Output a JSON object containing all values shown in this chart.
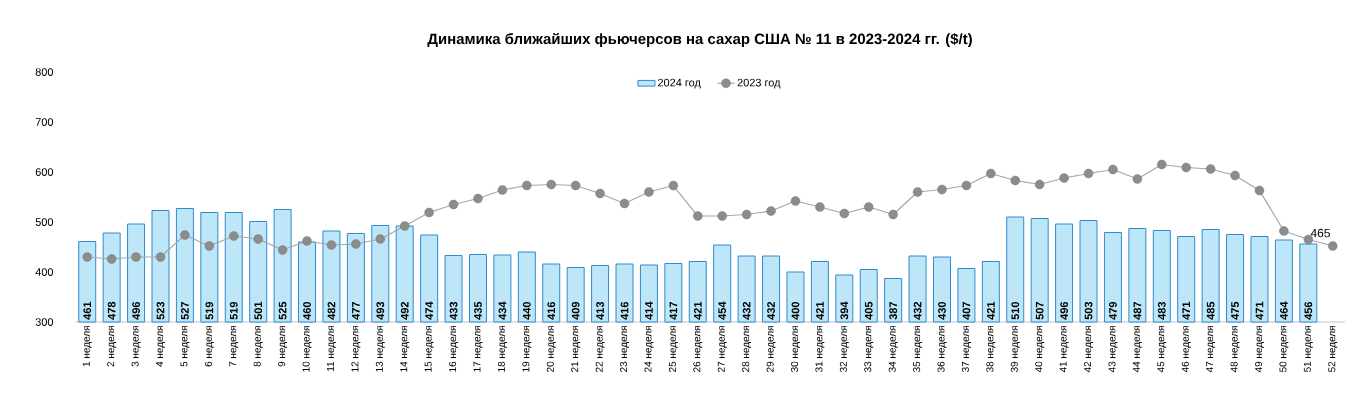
{
  "chart_data": {
    "type": "bar",
    "title": "Динамика ближайших фьючерсов на сахар США № 11 в 2023-2024 гг. ($/t)",
    "categories": [
      "1 неделя",
      "2 неделя",
      "3 неделя",
      "4 неделя",
      "5 неделя",
      "6 неделя",
      "7 неделя",
      "8 неделя",
      "9 неделя",
      "10 неделя",
      "11 неделя",
      "12 неделя",
      "13 неделя",
      "14 неделя",
      "15 неделя",
      "16 неделя",
      "17 неделя",
      "18 неделя",
      "19 неделя",
      "20 неделя",
      "21 неделя",
      "22 неделя",
      "23 неделя",
      "24 неделя",
      "25 неделя",
      "26 неделя",
      "27 неделя",
      "28 неделя",
      "29 неделя",
      "30 неделя",
      "31 неделя",
      "32 неделя",
      "33 неделя",
      "34 неделя",
      "35 неделя",
      "36 неделя",
      "37 неделя",
      "38 неделя",
      "39 неделя",
      "40 неделя",
      "41 неделя",
      "42 неделя",
      "43 неделя",
      "44 неделя",
      "45 неделя",
      "46 неделя",
      "47 неделя",
      "48 неделя",
      "49 неделя",
      "50 неделя",
      "51 неделя",
      "52 неделя"
    ],
    "series": [
      {
        "name": "2024 год",
        "type": "bar",
        "color": "#bde6f9",
        "data_labels": true,
        "values": [
          461,
          478,
          496,
          523,
          527,
          519,
          519,
          501,
          525,
          460,
          482,
          477,
          493,
          492,
          474,
          433,
          435,
          434,
          440,
          416,
          409,
          413,
          416,
          414,
          417,
          421,
          454,
          432,
          432,
          400,
          421,
          394,
          405,
          387,
          432,
          430,
          407,
          421,
          510,
          507,
          496,
          503,
          479,
          487,
          483,
          471,
          485,
          475,
          471,
          464,
          456,
          null
        ]
      },
      {
        "name": "2023 год",
        "type": "line",
        "color": "#a6a6a6",
        "marker": "circle",
        "line_style": "solid",
        "values": [
          430,
          426,
          430,
          430,
          474,
          452,
          472,
          466,
          444,
          462,
          454,
          456,
          466,
          492,
          519,
          535,
          547,
          564,
          573,
          575,
          573,
          557,
          537,
          560,
          573,
          512,
          512,
          515,
          522,
          542,
          530,
          517,
          530,
          515,
          560,
          565,
          573,
          597,
          583,
          575,
          588,
          597,
          605,
          586,
          615,
          609,
          606,
          593,
          563,
          482,
          465,
          452
        ],
        "value_labels": [
          null,
          null,
          null,
          null,
          null,
          null,
          null,
          null,
          null,
          null,
          null,
          null,
          null,
          null,
          null,
          null,
          null,
          null,
          null,
          null,
          null,
          null,
          null,
          null,
          null,
          null,
          null,
          null,
          null,
          null,
          null,
          null,
          null,
          null,
          null,
          null,
          null,
          null,
          null,
          null,
          null,
          null,
          null,
          null,
          null,
          null,
          null,
          null,
          null,
          null,
          "465",
          null
        ]
      }
    ],
    "ylim": [
      300,
      800
    ],
    "yticks": [
      300,
      400,
      500,
      600,
      700,
      800
    ],
    "grid": false,
    "legend": "top"
  }
}
